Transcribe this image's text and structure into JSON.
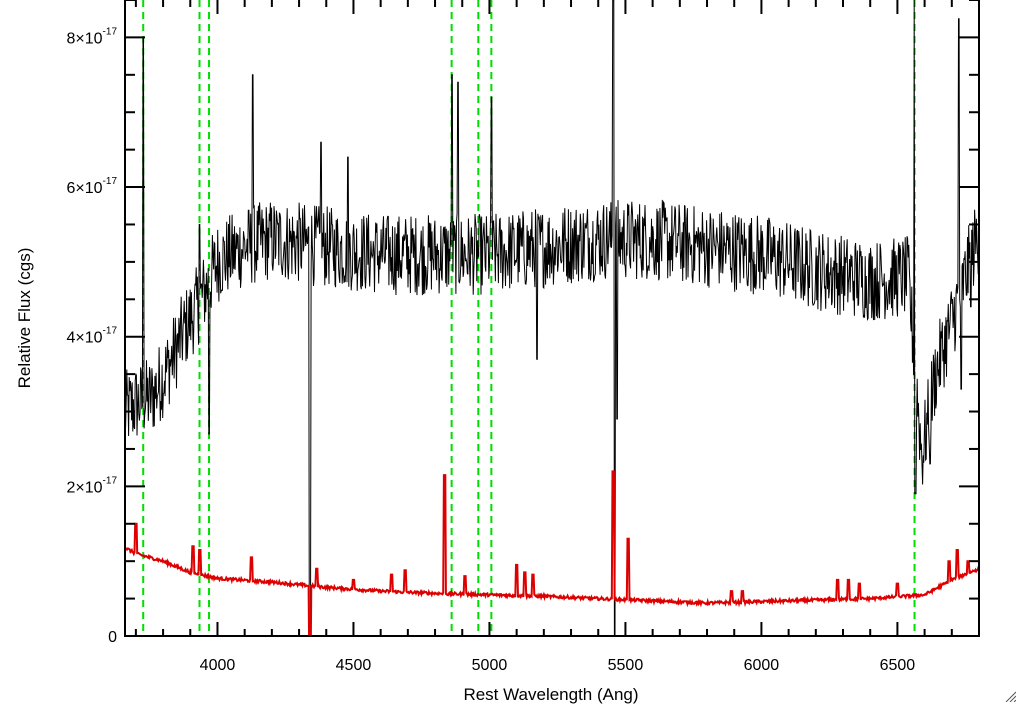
{
  "chart_data": {
    "type": "line",
    "title": "",
    "xlabel": "Rest Wavelength (Ang)",
    "ylabel": "Relative Flux (cgs)",
    "xlim": [
      3660,
      6800
    ],
    "ylim": [
      0,
      8.5e-17
    ],
    "x_ticks": [
      {
        "value": 4000,
        "label": "4000"
      },
      {
        "value": 4500,
        "label": "4500"
      },
      {
        "value": 5000,
        "label": "5000"
      },
      {
        "value": 5500,
        "label": "5500"
      },
      {
        "value": 6000,
        "label": "6000"
      },
      {
        "value": 6500,
        "label": "6500"
      }
    ],
    "y_ticks": [
      {
        "value": 0,
        "mantissa": "0",
        "exponent": ""
      },
      {
        "value": 2e-17,
        "mantissa": "2×10",
        "exponent": "-17"
      },
      {
        "value": 4e-17,
        "mantissa": "4×10",
        "exponent": "-17"
      },
      {
        "value": 6e-17,
        "mantissa": "6×10",
        "exponent": "-17"
      },
      {
        "value": 8e-17,
        "mantissa": "8×10",
        "exponent": "-17"
      }
    ],
    "reference_lines": {
      "color": "#00dd00",
      "style": "dashed",
      "x": [
        3727,
        3934,
        3969,
        4861,
        4959,
        5007,
        6563
      ]
    },
    "series": [
      {
        "color": "#000000",
        "continuum": [
          [
            3660,
            3e-17
          ],
          [
            3700,
            3.1e-17
          ],
          [
            3760,
            3.2e-17
          ],
          [
            3820,
            3.6e-17
          ],
          [
            3880,
            4.1e-17
          ],
          [
            3940,
            4.5e-17
          ],
          [
            4000,
            5e-17
          ],
          [
            4100,
            5.2e-17
          ],
          [
            4200,
            5.3e-17
          ],
          [
            4400,
            5.2e-17
          ],
          [
            4600,
            5.1e-17
          ],
          [
            4800,
            5.1e-17
          ],
          [
            5000,
            5.1e-17
          ],
          [
            5200,
            5.2e-17
          ],
          [
            5400,
            5.3e-17
          ],
          [
            5600,
            5.3e-17
          ],
          [
            5800,
            5.2e-17
          ],
          [
            6000,
            5.1e-17
          ],
          [
            6200,
            4.9e-17
          ],
          [
            6400,
            4.75e-17
          ],
          [
            6540,
            4.8e-17
          ],
          [
            6590,
            2.4e-17
          ],
          [
            6640,
            3.5e-17
          ],
          [
            6700,
            4.2e-17
          ],
          [
            6800,
            5.4e-17
          ]
        ],
        "noise": 5.5e-18,
        "features": [
          [
            3727,
            8e-17
          ],
          [
            3934,
            5.5e-17
          ],
          [
            3969,
            2.7e-17
          ],
          [
            4130,
            7.5e-17
          ],
          [
            4340,
            0.0
          ],
          [
            4380,
            6.6e-17
          ],
          [
            4480,
            6.4e-17
          ],
          [
            4862,
            7.5e-17
          ],
          [
            4885,
            7.4e-17
          ],
          [
            5008,
            7.2e-17
          ],
          [
            5175,
            3.7e-17
          ],
          [
            5455,
            8.5e-17
          ],
          [
            5460,
            0.0
          ],
          [
            5470,
            2.9e-17
          ],
          [
            6563,
            8.5e-17
          ],
          [
            6566,
            1.9e-17
          ],
          [
            6620,
            2.3e-17
          ],
          [
            6725,
            8.25e-17
          ],
          [
            6735,
            3.3e-17
          ],
          [
            6770,
            4.4e-17
          ]
        ]
      },
      {
        "color": "#dd0000",
        "continuum": [
          [
            3660,
            1.18e-17
          ],
          [
            3700,
            1.1e-17
          ],
          [
            3800,
            1e-17
          ],
          [
            3900,
            8.5e-18
          ],
          [
            4000,
            7.7e-18
          ],
          [
            4200,
            7.2e-18
          ],
          [
            4400,
            6.5e-18
          ],
          [
            4600,
            6e-18
          ],
          [
            4800,
            5.7e-18
          ],
          [
            5000,
            5.5e-18
          ],
          [
            5200,
            5.3e-18
          ],
          [
            5400,
            5e-18
          ],
          [
            5600,
            4.7e-18
          ],
          [
            5800,
            4.4e-18
          ],
          [
            6000,
            4.6e-18
          ],
          [
            6200,
            4.8e-18
          ],
          [
            6400,
            5e-18
          ],
          [
            6600,
            5.5e-18
          ],
          [
            6700,
            7.5e-18
          ],
          [
            6800,
            9e-18
          ]
        ],
        "spikes": [
          [
            3700,
            1.5e-17
          ],
          [
            3910,
            1.2e-17
          ],
          [
            3935,
            1.15e-17
          ],
          [
            4125,
            1.05e-17
          ],
          [
            4340,
            -4e-18
          ],
          [
            4365,
            9e-18
          ],
          [
            4500,
            7.5e-18
          ],
          [
            4640,
            8.2e-18
          ],
          [
            4690,
            8.8e-18
          ],
          [
            4835,
            2.15e-17
          ],
          [
            4910,
            8e-18
          ],
          [
            5100,
            9.5e-18
          ],
          [
            5130,
            8.5e-18
          ],
          [
            5160,
            8.2e-18
          ],
          [
            5455,
            2.2e-17
          ],
          [
            5510,
            1.3e-17
          ],
          [
            5890,
            6e-18
          ],
          [
            5930,
            6e-18
          ],
          [
            6280,
            7.5e-18
          ],
          [
            6320,
            7.5e-18
          ],
          [
            6360,
            7e-18
          ],
          [
            6500,
            7e-18
          ],
          [
            6690,
            1e-17
          ],
          [
            6720,
            1.15e-17
          ],
          [
            6760,
            1e-17
          ]
        ]
      }
    ]
  }
}
